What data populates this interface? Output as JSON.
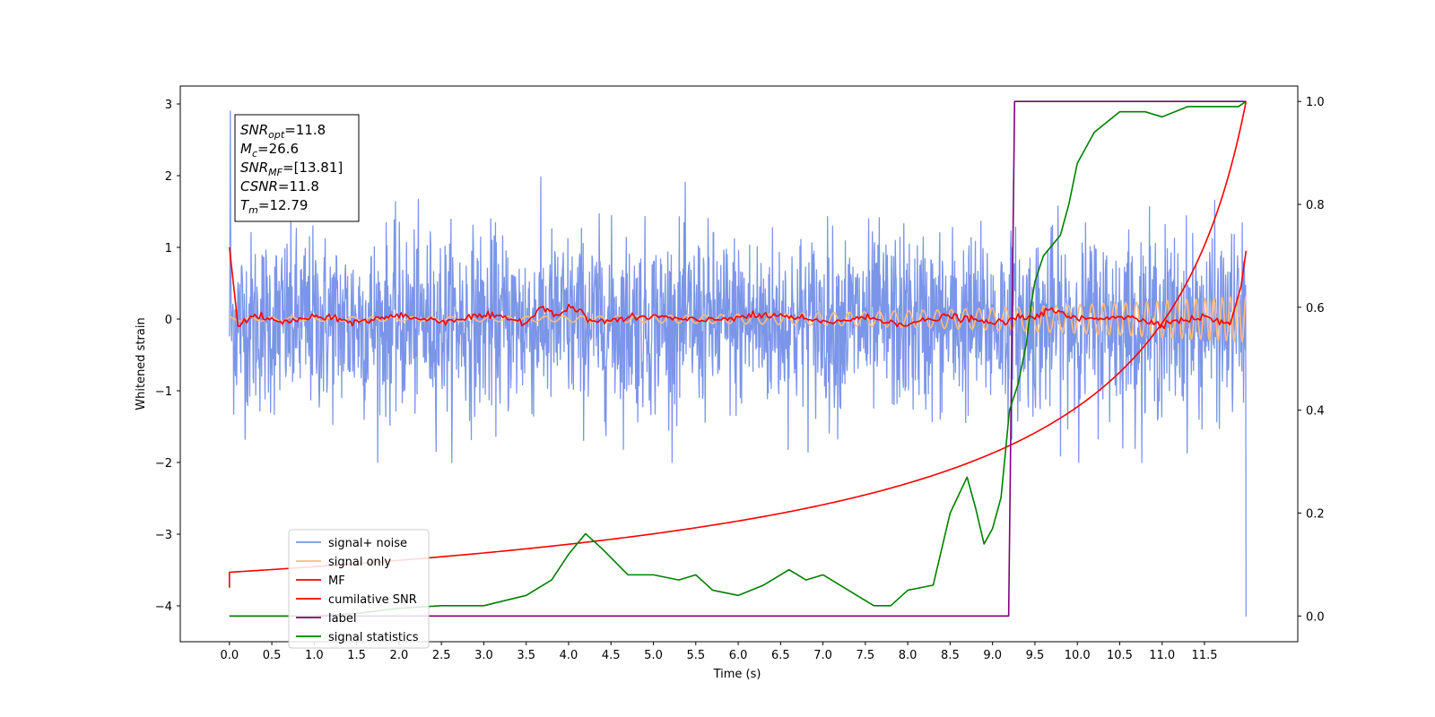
{
  "chart_data": {
    "type": "line",
    "xlabel": "Time (s)",
    "ylabel": "Whitened strain",
    "xlim": [
      -0.58,
      12.6
    ],
    "ylim": [
      -4.5,
      3.25
    ],
    "y2lim": [
      -0.05,
      1.03
    ],
    "x_ticks": [
      "0.0",
      "0.5",
      "1.0",
      "1.5",
      "2.0",
      "2.5",
      "3.0",
      "3.5",
      "4.0",
      "4.5",
      "5.0",
      "5.5",
      "6.0",
      "6.5",
      "7.0",
      "7.5",
      "8.0",
      "8.5",
      "9.0",
      "9.5",
      "10.0",
      "10.5",
      "11.0",
      "11.5"
    ],
    "y_ticks": [
      "3",
      "2",
      "1",
      "0",
      "−1",
      "−2",
      "−3",
      "−4"
    ],
    "y2_ticks": [
      "1.0",
      "0.8",
      "0.6",
      "0.4",
      "0.2",
      "0.0"
    ],
    "grid": false,
    "legend_position": "lower-left",
    "annotation": {
      "lines": [
        {
          "name": "SNR",
          "sub": "opt",
          "value": "=11.8"
        },
        {
          "name": "M",
          "sub": "c",
          "value": "=26.6"
        },
        {
          "name": "SNR",
          "sub": "MF",
          "value": "=[13.81]"
        },
        {
          "name": "CSNR",
          "sub": "",
          "value": "=11.8"
        },
        {
          "name": "T",
          "sub": "m",
          "value": "=12.79"
        }
      ]
    },
    "series": [
      {
        "name": "signal+ noise",
        "color": "#7b95e8",
        "axis": "left",
        "kind": "noise",
        "std": 0.62,
        "range": [
          -2.0,
          2.1
        ],
        "x_range": [
          0.0,
          11.99
        ],
        "end_spike": -4.15
      },
      {
        "name": "signal only",
        "color": "#ffbb78",
        "axis": "left",
        "kind": "chirp",
        "amplitude_start": 0.03,
        "amplitude_end": 0.32,
        "x_range": [
          0.0,
          11.99
        ]
      },
      {
        "name": "MF",
        "color": "#ff0000",
        "axis": "left",
        "kind": "mf",
        "points": [
          [
            0.0,
            1.0
          ],
          [
            0.1,
            -0.08
          ],
          [
            0.3,
            0.05
          ],
          [
            0.6,
            -0.05
          ],
          [
            1.0,
            0.03
          ],
          [
            1.5,
            -0.04
          ],
          [
            2.0,
            0.05
          ],
          [
            2.5,
            -0.03
          ],
          [
            3.0,
            0.05
          ],
          [
            3.5,
            -0.04
          ],
          [
            3.7,
            0.18
          ],
          [
            3.9,
            0.05
          ],
          [
            4.0,
            0.19
          ],
          [
            4.3,
            -0.04
          ],
          [
            5.0,
            0.04
          ],
          [
            5.5,
            -0.03
          ],
          [
            6.0,
            0.03
          ],
          [
            6.5,
            0.05
          ],
          [
            7.0,
            -0.05
          ],
          [
            7.5,
            0.02
          ],
          [
            8.0,
            -0.07
          ],
          [
            8.5,
            0.04
          ],
          [
            9.0,
            -0.06
          ],
          [
            9.5,
            0.05
          ],
          [
            9.7,
            0.12
          ],
          [
            10.0,
            0.0
          ],
          [
            10.5,
            0.04
          ],
          [
            11.0,
            -0.06
          ],
          [
            11.5,
            0.03
          ],
          [
            11.8,
            -0.08
          ],
          [
            11.93,
            0.45
          ],
          [
            11.99,
            0.95
          ]
        ]
      },
      {
        "name": "cumilative SNR",
        "color": "#ff0000",
        "axis": "right",
        "kind": "csnr",
        "start": 0.085,
        "end": 1.0,
        "x_range": [
          0.0,
          11.99
        ]
      },
      {
        "name": "label",
        "color": "#800080",
        "axis": "right",
        "kind": "step",
        "points": [
          [
            0.0,
            0.0
          ],
          [
            9.19,
            0.0
          ],
          [
            9.26,
            1.0
          ],
          [
            11.99,
            1.0
          ]
        ]
      },
      {
        "name": "signal statistics",
        "color": "#008000",
        "axis": "right",
        "kind": "line",
        "points": [
          [
            0.0,
            0.0
          ],
          [
            0.5,
            0.0
          ],
          [
            1.0,
            0.0
          ],
          [
            1.5,
            0.005
          ],
          [
            2.0,
            0.015
          ],
          [
            2.5,
            0.02
          ],
          [
            3.0,
            0.02
          ],
          [
            3.5,
            0.04
          ],
          [
            3.8,
            0.07
          ],
          [
            4.0,
            0.12
          ],
          [
            4.2,
            0.16
          ],
          [
            4.4,
            0.13
          ],
          [
            4.7,
            0.08
          ],
          [
            5.0,
            0.08
          ],
          [
            5.3,
            0.07
          ],
          [
            5.5,
            0.08
          ],
          [
            5.7,
            0.05
          ],
          [
            6.0,
            0.04
          ],
          [
            6.3,
            0.06
          ],
          [
            6.6,
            0.09
          ],
          [
            6.8,
            0.07
          ],
          [
            7.0,
            0.08
          ],
          [
            7.3,
            0.05
          ],
          [
            7.6,
            0.02
          ],
          [
            7.8,
            0.02
          ],
          [
            8.0,
            0.05
          ],
          [
            8.3,
            0.06
          ],
          [
            8.5,
            0.2
          ],
          [
            8.7,
            0.27
          ],
          [
            8.8,
            0.21
          ],
          [
            8.9,
            0.14
          ],
          [
            9.0,
            0.17
          ],
          [
            9.1,
            0.23
          ],
          [
            9.2,
            0.4
          ],
          [
            9.3,
            0.45
          ],
          [
            9.4,
            0.53
          ],
          [
            9.45,
            0.6
          ],
          [
            9.5,
            0.65
          ],
          [
            9.6,
            0.7
          ],
          [
            9.8,
            0.74
          ],
          [
            9.9,
            0.8
          ],
          [
            10.0,
            0.88
          ],
          [
            10.2,
            0.94
          ],
          [
            10.5,
            0.98
          ],
          [
            10.8,
            0.98
          ],
          [
            11.0,
            0.97
          ],
          [
            11.3,
            0.99
          ],
          [
            11.6,
            0.99
          ],
          [
            11.9,
            0.99
          ],
          [
            11.99,
            1.0
          ]
        ]
      }
    ]
  }
}
